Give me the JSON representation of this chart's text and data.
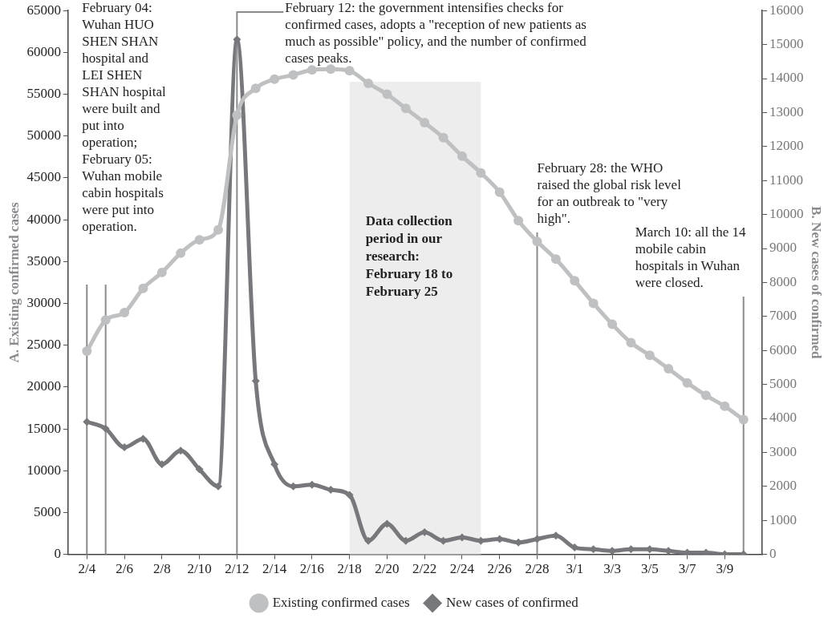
{
  "chart_data": {
    "type": "line",
    "x": [
      "--02-04",
      "--02-05",
      "--02-06",
      "--02-07",
      "--02-08",
      "--02-09",
      "--02-10",
      "--02-11",
      "--02-12",
      "--02-13",
      "--02-14",
      "--02-15",
      "--02-16",
      "--02-17",
      "--02-18",
      "--02-19",
      "--02-20",
      "--02-21",
      "--02-22",
      "--02-23",
      "--02-24",
      "--02-25",
      "--02-26",
      "--02-27",
      "--02-28",
      "--02-29",
      "--03-01",
      "--03-02",
      "--03-03",
      "--03-04",
      "--03-05",
      "--03-06",
      "--03-07",
      "--03-08",
      "--03-09",
      "--03-10"
    ],
    "xlim": [
      "--02-03",
      "--03-11"
    ],
    "xticks": [
      {
        "value": "--02-04",
        "label": "2/4"
      },
      {
        "value": "--02-06",
        "label": "2/6"
      },
      {
        "value": "--02-08",
        "label": "2/8"
      },
      {
        "value": "--02-10",
        "label": "2/10"
      },
      {
        "value": "--02-12",
        "label": "2/12"
      },
      {
        "value": "--02-14",
        "label": "2/14"
      },
      {
        "value": "--02-16",
        "label": "2/16"
      },
      {
        "value": "--02-18",
        "label": "2/18"
      },
      {
        "value": "--02-20",
        "label": "2/20"
      },
      {
        "value": "--02-22",
        "label": "2/22"
      },
      {
        "value": "--02-24",
        "label": "2/24"
      },
      {
        "value": "--02-26",
        "label": "2/26"
      },
      {
        "value": "--02-28",
        "label": "2/28"
      },
      {
        "value": "--03-01",
        "label": "3/1"
      },
      {
        "value": "--03-03",
        "label": "3/3"
      },
      {
        "value": "--03-05",
        "label": "3/5"
      },
      {
        "value": "--03-07",
        "label": "3/7"
      },
      {
        "value": "--03-09",
        "label": "3/9"
      }
    ],
    "series": [
      {
        "name": "Existing confirmed cases",
        "color": "#bfc0c2",
        "marker": "circle",
        "values": [
          24300,
          28000,
          28900,
          31800,
          33700,
          36000,
          37600,
          38800,
          52500,
          55700,
          56800,
          57300,
          57900,
          58000,
          57800,
          56300,
          55000,
          53300,
          51600,
          49800,
          47600,
          45600,
          43300,
          39900,
          37400,
          35300,
          32700,
          30000,
          27500,
          25300,
          23800,
          22200,
          20500,
          19000,
          17700,
          16100
        ]
      },
      {
        "name": "New cases of confirmed",
        "color": "#77787b",
        "marker": "diamond",
        "axis": "y2",
        "values": [
          3900,
          3700,
          3150,
          3400,
          2650,
          3050,
          2500,
          2000,
          15150,
          5100,
          2650,
          2000,
          2050,
          1900,
          1750,
          400,
          900,
          400,
          650,
          400,
          500,
          400,
          450,
          350,
          450,
          550,
          200,
          150,
          100,
          150,
          150,
          100,
          50,
          50,
          0,
          0
        ]
      }
    ],
    "ylim": [
      0,
      65000
    ],
    "yticks": [
      0,
      5000,
      10000,
      15000,
      20000,
      25000,
      30000,
      35000,
      40000,
      45000,
      50000,
      55000,
      60000,
      65000
    ],
    "y2lim": [
      0,
      16000
    ],
    "y2ticks": [
      0,
      1000,
      2000,
      3000,
      4000,
      5000,
      6000,
      7000,
      8000,
      9000,
      10000,
      11000,
      12000,
      13000,
      14000,
      15000,
      16000
    ],
    "ylabel": "A. Existing confirmed cases",
    "y2label": "B. New cases of confirmed",
    "ref_lines": [
      {
        "axis": "x",
        "value": "--02-04",
        "color": "#8a8b8e",
        "label": "February 04: Wuhan HUO SHEN SHAN hospital and LEI SHEN SHAN hospital were built and put into operation; February 05: Wuhan mobile cabin hospitals were put into operation."
      },
      {
        "axis": "x",
        "value": "--02-05",
        "color": "#8a8b8e"
      },
      {
        "axis": "x",
        "value": "--02-12",
        "color": "#8a8b8e",
        "label": "February 12: the government intensifies checks for confirmed cases, adopts a \"reception of new patients as much as possible\" policy, and the number of confirmed cases peaks."
      },
      {
        "axis": "x",
        "value": "--02-28",
        "color": "#8a8b8e",
        "label": "February 28: the WHO raised the global risk level for an outbreak to \"very high\"."
      },
      {
        "axis": "x",
        "value": "--03-10",
        "color": "#8a8b8e",
        "label": "March 10: all the 14 mobile cabin hospitals in Wuhan were closed."
      }
    ],
    "bands": [
      {
        "axis": "x",
        "from": "--02-18",
        "to": "--02-25",
        "color": "#ededed",
        "label": "Data collection period in our research: February 18 to February 25"
      }
    ],
    "grid": false,
    "legend": "bottom",
    "line_style": "solid"
  }
}
